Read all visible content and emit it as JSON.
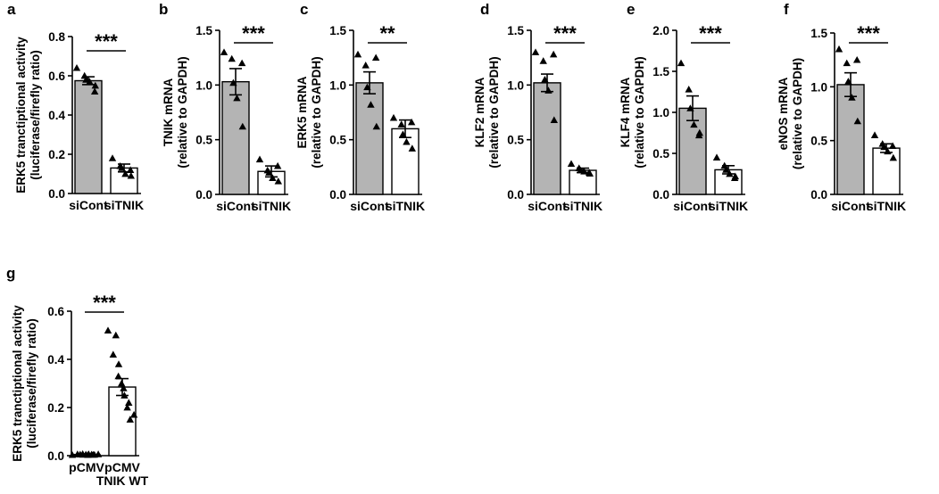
{
  "chart_data": [
    {
      "panel": "a",
      "type": "bar",
      "categories": [
        "siCont",
        "siTNIK"
      ],
      "values": [
        0.575,
        0.13
      ],
      "errors": [
        0.02,
        0.02
      ],
      "points": [
        [
          0.64,
          0.6,
          0.58,
          0.57,
          0.55,
          0.52
        ],
        [
          0.18,
          0.14,
          0.13,
          0.1,
          0.09,
          0.12
        ]
      ],
      "ylabel": [
        "ERK5 tranctiptional activity",
        "(luciferase/firefly ratio)"
      ],
      "ylim": [
        0,
        0.8
      ],
      "yticks": [
        "0.0",
        "0.2",
        "0.4",
        "0.6",
        "0.8"
      ],
      "significance": "***",
      "bar_colors": [
        "#b4b4b4",
        "#ffffff"
      ],
      "marker": "triangle"
    },
    {
      "panel": "b",
      "type": "bar",
      "categories": [
        "siCont",
        "siTNIK"
      ],
      "values": [
        1.03,
        0.21
      ],
      "errors": [
        0.12,
        0.05
      ],
      "points": [
        [
          1.3,
          1.24,
          1.02,
          0.88,
          0.62,
          1.2
        ],
        [
          0.32,
          0.22,
          0.2,
          0.15,
          0.12,
          0.26
        ]
      ],
      "ylabel": [
        "TNIK  mRNA",
        "(relative to GAPDH)"
      ],
      "ylim": [
        0,
        1.5
      ],
      "yticks": [
        "0.0",
        "0.5",
        "1.0",
        "1.5"
      ],
      "significance": "***",
      "bar_colors": [
        "#b4b4b4",
        "#ffffff"
      ],
      "marker": "triangle"
    },
    {
      "panel": "c",
      "type": "bar",
      "categories": [
        "siCont",
        "siTNIK"
      ],
      "values": [
        1.02,
        0.6
      ],
      "errors": [
        0.1,
        0.08
      ],
      "points": [
        [
          1.28,
          1.18,
          0.98,
          0.82,
          0.62,
          1.25
        ],
        [
          0.7,
          0.64,
          0.55,
          0.48,
          0.42,
          0.66
        ]
      ],
      "ylabel": [
        "ERK5  mRNA",
        "(relative to GAPDH)"
      ],
      "ylim": [
        0,
        1.5
      ],
      "yticks": [
        "0.0",
        "0.5",
        "1.0",
        "1.5"
      ],
      "significance": "**",
      "bar_colors": [
        "#b4b4b4",
        "#ffffff"
      ],
      "marker": "triangle"
    },
    {
      "panel": "d",
      "type": "bar",
      "categories": [
        "siCont",
        "siTNIK"
      ],
      "values": [
        1.02,
        0.22
      ],
      "errors": [
        0.08,
        0.02
      ],
      "points": [
        [
          1.3,
          1.22,
          1.05,
          0.95,
          0.68,
          1.28
        ],
        [
          0.28,
          0.24,
          0.22,
          0.21,
          0.19,
          0.2
        ]
      ],
      "ylabel": [
        "KLF2  mRNA",
        "(relative to GAPDH)"
      ],
      "ylim": [
        0,
        1.5
      ],
      "yticks": [
        "0.0",
        "0.5",
        "1.0",
        "1.5"
      ],
      "significance": "***",
      "bar_colors": [
        "#b4b4b4",
        "#ffffff"
      ],
      "marker": "triangle"
    },
    {
      "panel": "e",
      "type": "bar",
      "categories": [
        "siCont",
        "siTNIK"
      ],
      "values": [
        1.05,
        0.3
      ],
      "errors": [
        0.15,
        0.05
      ],
      "points": [
        [
          1.6,
          1.28,
          1.05,
          0.85,
          0.75,
          0.72
        ],
        [
          0.45,
          0.35,
          0.3,
          0.25,
          0.22,
          0.2
        ]
      ],
      "ylabel": [
        "KLF4  mRNA",
        "(relative to GAPDH)"
      ],
      "ylim": [
        0,
        2.0
      ],
      "yticks": [
        "0.0",
        "0.5",
        "1.0",
        "1.5",
        "2.0"
      ],
      "significance": "***",
      "bar_colors": [
        "#b4b4b4",
        "#ffffff"
      ],
      "marker": "triangle"
    },
    {
      "panel": "f",
      "type": "bar",
      "categories": [
        "siCont",
        "siTNIK"
      ],
      "values": [
        1.02,
        0.43
      ],
      "errors": [
        0.11,
        0.04
      ],
      "points": [
        [
          1.35,
          1.22,
          1.05,
          0.9,
          0.68,
          1.25
        ],
        [
          0.55,
          0.47,
          0.44,
          0.4,
          0.34,
          0.45
        ]
      ],
      "ylabel": [
        "eNOS  mRNA",
        "(relative to GAPDH)"
      ],
      "ylim": [
        0,
        1.5
      ],
      "yticks": [
        "0.0",
        "0.5",
        "1.0",
        "1.5"
      ],
      "significance": "***",
      "bar_colors": [
        "#b4b4b4",
        "#ffffff"
      ],
      "marker": "triangle"
    },
    {
      "panel": "g",
      "type": "bar",
      "categories": [
        "pCMV",
        [
          "pCMV",
          "TNIK WT"
        ]
      ],
      "values": [
        0.005,
        0.285
      ],
      "errors": [
        0.002,
        0.035
      ],
      "points": [
        [
          0.003,
          0.005,
          0.006,
          0.004,
          0.007,
          0.005,
          0.003,
          0.006,
          0.004,
          0.005,
          0.006,
          0.004
        ],
        [
          0.52,
          0.5,
          0.42,
          0.38,
          0.33,
          0.3,
          0.28,
          0.25,
          0.22,
          0.2,
          0.17,
          0.15
        ]
      ],
      "ylabel": [
        "ERK5 tranctiptional activity",
        "(luciferase/firefly ratio)"
      ],
      "ylim": [
        0,
        0.6
      ],
      "yticks": [
        "0.0",
        "0.2",
        "0.4",
        "0.6"
      ],
      "significance": "***",
      "bar_colors": [
        "#b4b4b4",
        "#ffffff"
      ],
      "marker": "triangle"
    }
  ]
}
